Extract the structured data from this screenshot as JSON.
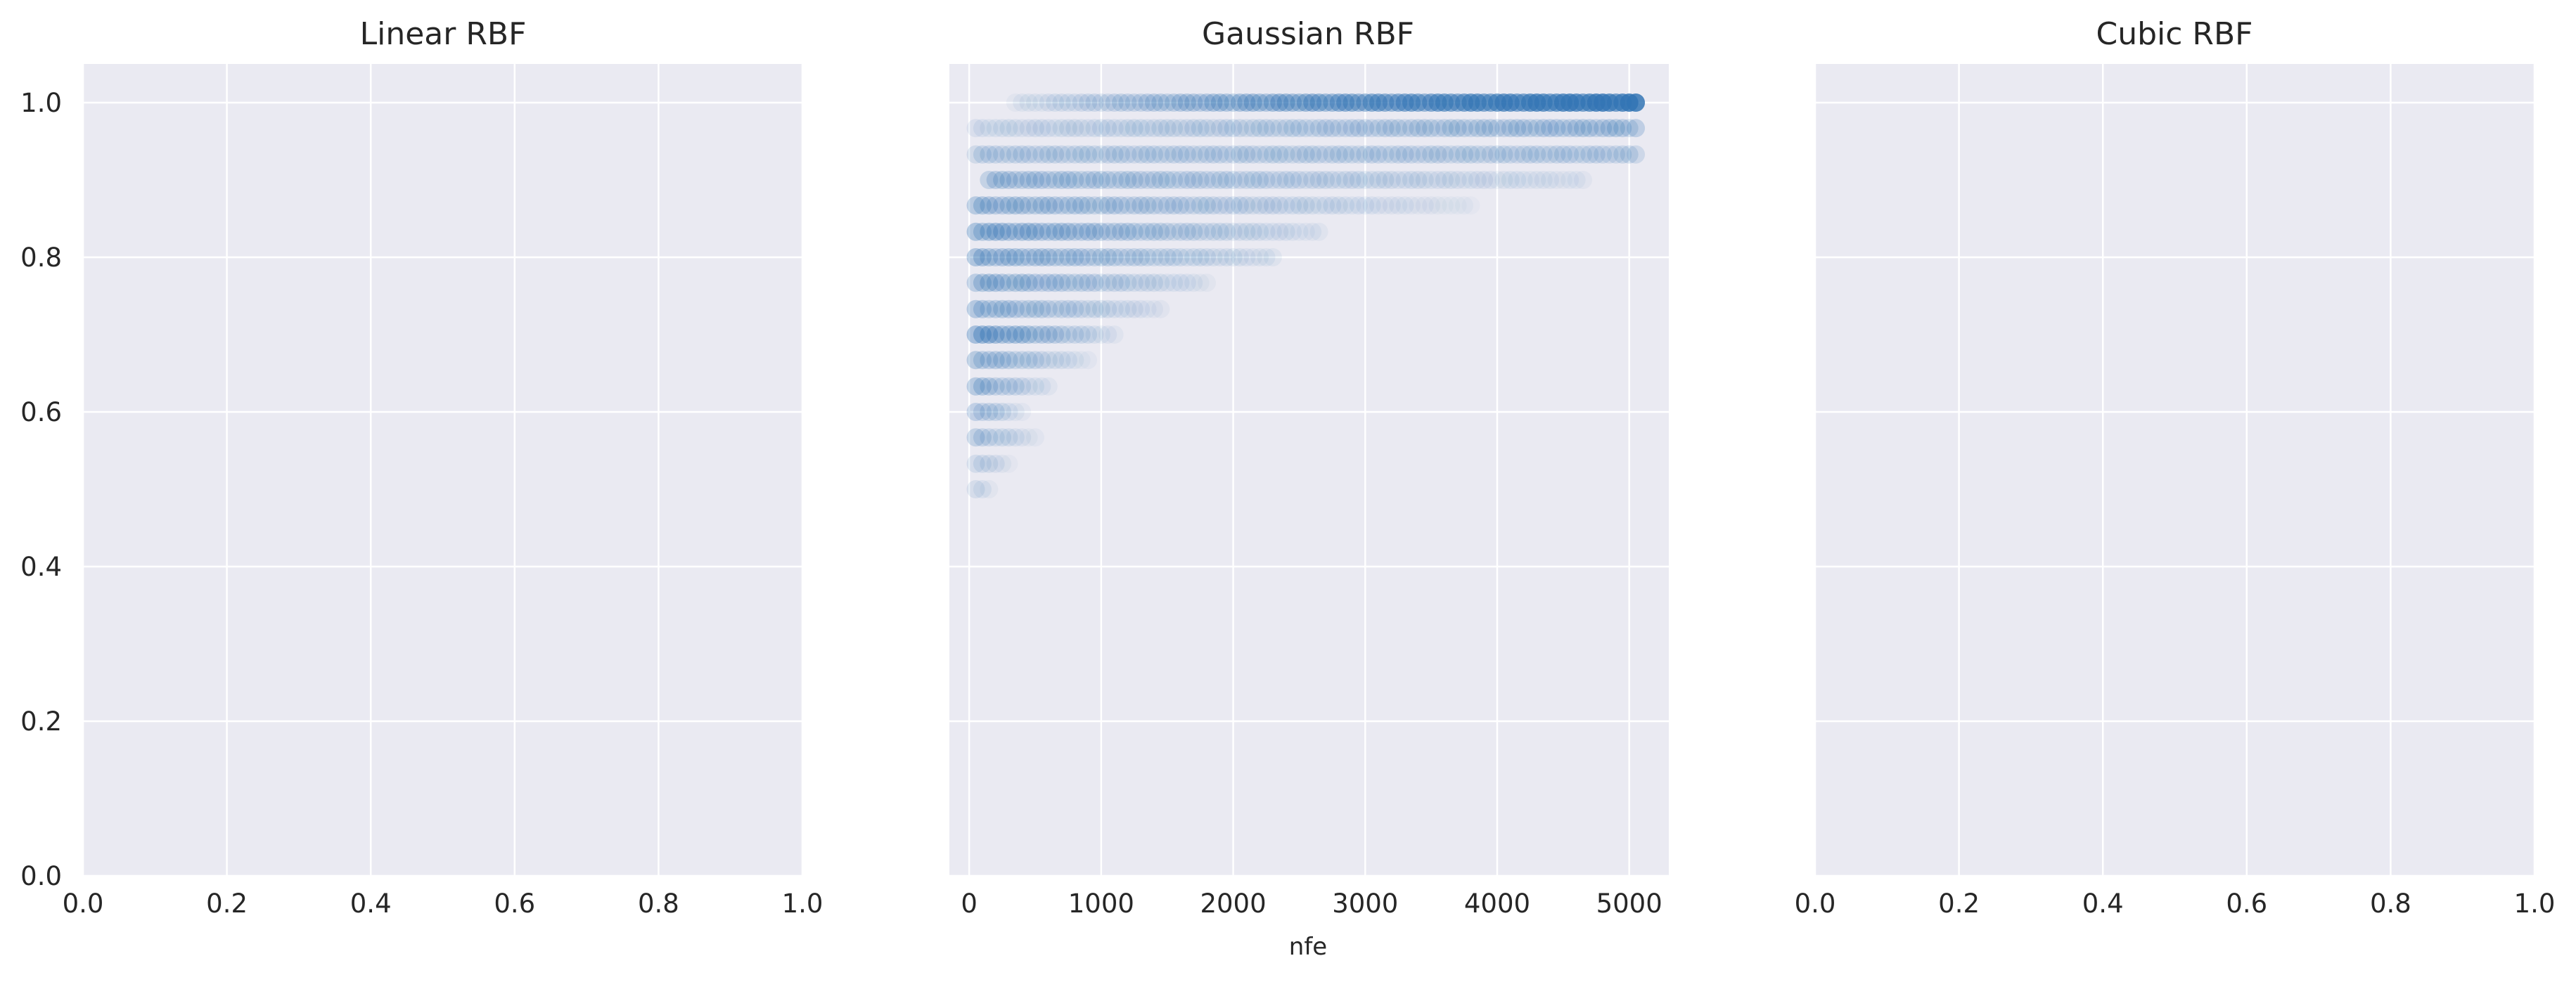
{
  "colors": {
    "background": "#eaeaf2",
    "grid": "#ffffff",
    "point": "#3274b4",
    "text": "#262626"
  },
  "chart_data": [
    {
      "type": "scatter",
      "title": "Linear RBF",
      "xlabel": "",
      "ylabel": "",
      "xlim": [
        0.0,
        1.0
      ],
      "ylim": [
        0.0,
        1.05
      ],
      "xticks": [
        0.0,
        0.2,
        0.4,
        0.6,
        0.8,
        1.0
      ],
      "xtick_labels": [
        "0.0",
        "0.2",
        "0.4",
        "0.6",
        "0.8",
        "1.0"
      ],
      "yticks": [
        0.0,
        0.2,
        0.4,
        0.6,
        0.8,
        1.0
      ],
      "ytick_labels": [
        "0.0",
        "0.2",
        "0.4",
        "0.6",
        "0.8",
        "1.0"
      ],
      "grid": true,
      "points": []
    },
    {
      "type": "scatter",
      "title": "Gaussian RBF",
      "xlabel": "nfe",
      "ylabel": "",
      "xlim": [
        -150,
        5300
      ],
      "ylim": [
        0.0,
        1.05
      ],
      "xticks": [
        0,
        1000,
        2000,
        3000,
        4000,
        5000
      ],
      "xtick_labels": [
        "0",
        "1000",
        "2000",
        "3000",
        "4000",
        "5000"
      ],
      "yticks": [
        0.0,
        0.2,
        0.4,
        0.6,
        0.8,
        1.0
      ],
      "grid": true,
      "points_note": "",
      "rows": [
        {
          "y": 1.0,
          "x_start": 350,
          "x_end": 5050,
          "alpha_start": 0.05,
          "alpha_end": 0.75
        },
        {
          "y": 0.967,
          "x_start": 50,
          "x_end": 5050,
          "alpha_start": 0.08,
          "alpha_end": 0.22
        },
        {
          "y": 0.933,
          "x_start": 50,
          "x_end": 5050,
          "alpha_start": 0.15,
          "alpha_end": 0.15
        },
        {
          "y": 0.9,
          "x_start": 150,
          "x_end": 4650,
          "alpha_start": 0.22,
          "alpha_end": 0.05
        },
        {
          "y": 0.867,
          "x_start": 50,
          "x_end": 3800,
          "alpha_start": 0.25,
          "alpha_end": 0.03
        },
        {
          "y": 0.833,
          "x_start": 50,
          "x_end": 2650,
          "alpha_start": 0.32,
          "alpha_end": 0.05
        },
        {
          "y": 0.8,
          "x_start": 50,
          "x_end": 2300,
          "alpha_start": 0.28,
          "alpha_end": 0.06
        },
        {
          "y": 0.767,
          "x_start": 50,
          "x_end": 1800,
          "alpha_start": 0.28,
          "alpha_end": 0.05
        },
        {
          "y": 0.733,
          "x_start": 50,
          "x_end": 1450,
          "alpha_start": 0.25,
          "alpha_end": 0.05
        },
        {
          "y": 0.7,
          "x_start": 50,
          "x_end": 1100,
          "alpha_start": 0.38,
          "alpha_end": 0.05
        },
        {
          "y": 0.667,
          "x_start": 50,
          "x_end": 900,
          "alpha_start": 0.25,
          "alpha_end": 0.04
        },
        {
          "y": 0.633,
          "x_start": 50,
          "x_end": 600,
          "alpha_start": 0.25,
          "alpha_end": 0.05
        },
        {
          "y": 0.6,
          "x_start": 50,
          "x_end": 400,
          "alpha_start": 0.22,
          "alpha_end": 0.04
        },
        {
          "y": 0.567,
          "x_start": 50,
          "x_end": 500,
          "alpha_start": 0.18,
          "alpha_end": 0.04
        },
        {
          "y": 0.533,
          "x_start": 50,
          "x_end": 300,
          "alpha_start": 0.14,
          "alpha_end": 0.04
        },
        {
          "y": 0.5,
          "x_start": 50,
          "x_end": 150,
          "alpha_start": 0.1,
          "alpha_end": 0.06
        }
      ]
    },
    {
      "type": "scatter",
      "title": "Cubic RBF",
      "xlabel": "",
      "ylabel": "",
      "xlim": [
        0.0,
        1.0
      ],
      "ylim": [
        0.0,
        1.05
      ],
      "xticks": [
        0.0,
        0.2,
        0.4,
        0.6,
        0.8,
        1.0
      ],
      "xtick_labels": [
        "0.0",
        "0.2",
        "0.4",
        "0.6",
        "0.8",
        "1.0"
      ],
      "yticks": [
        0.0,
        0.2,
        0.4,
        0.6,
        0.8,
        1.0
      ],
      "grid": true,
      "points": []
    }
  ]
}
